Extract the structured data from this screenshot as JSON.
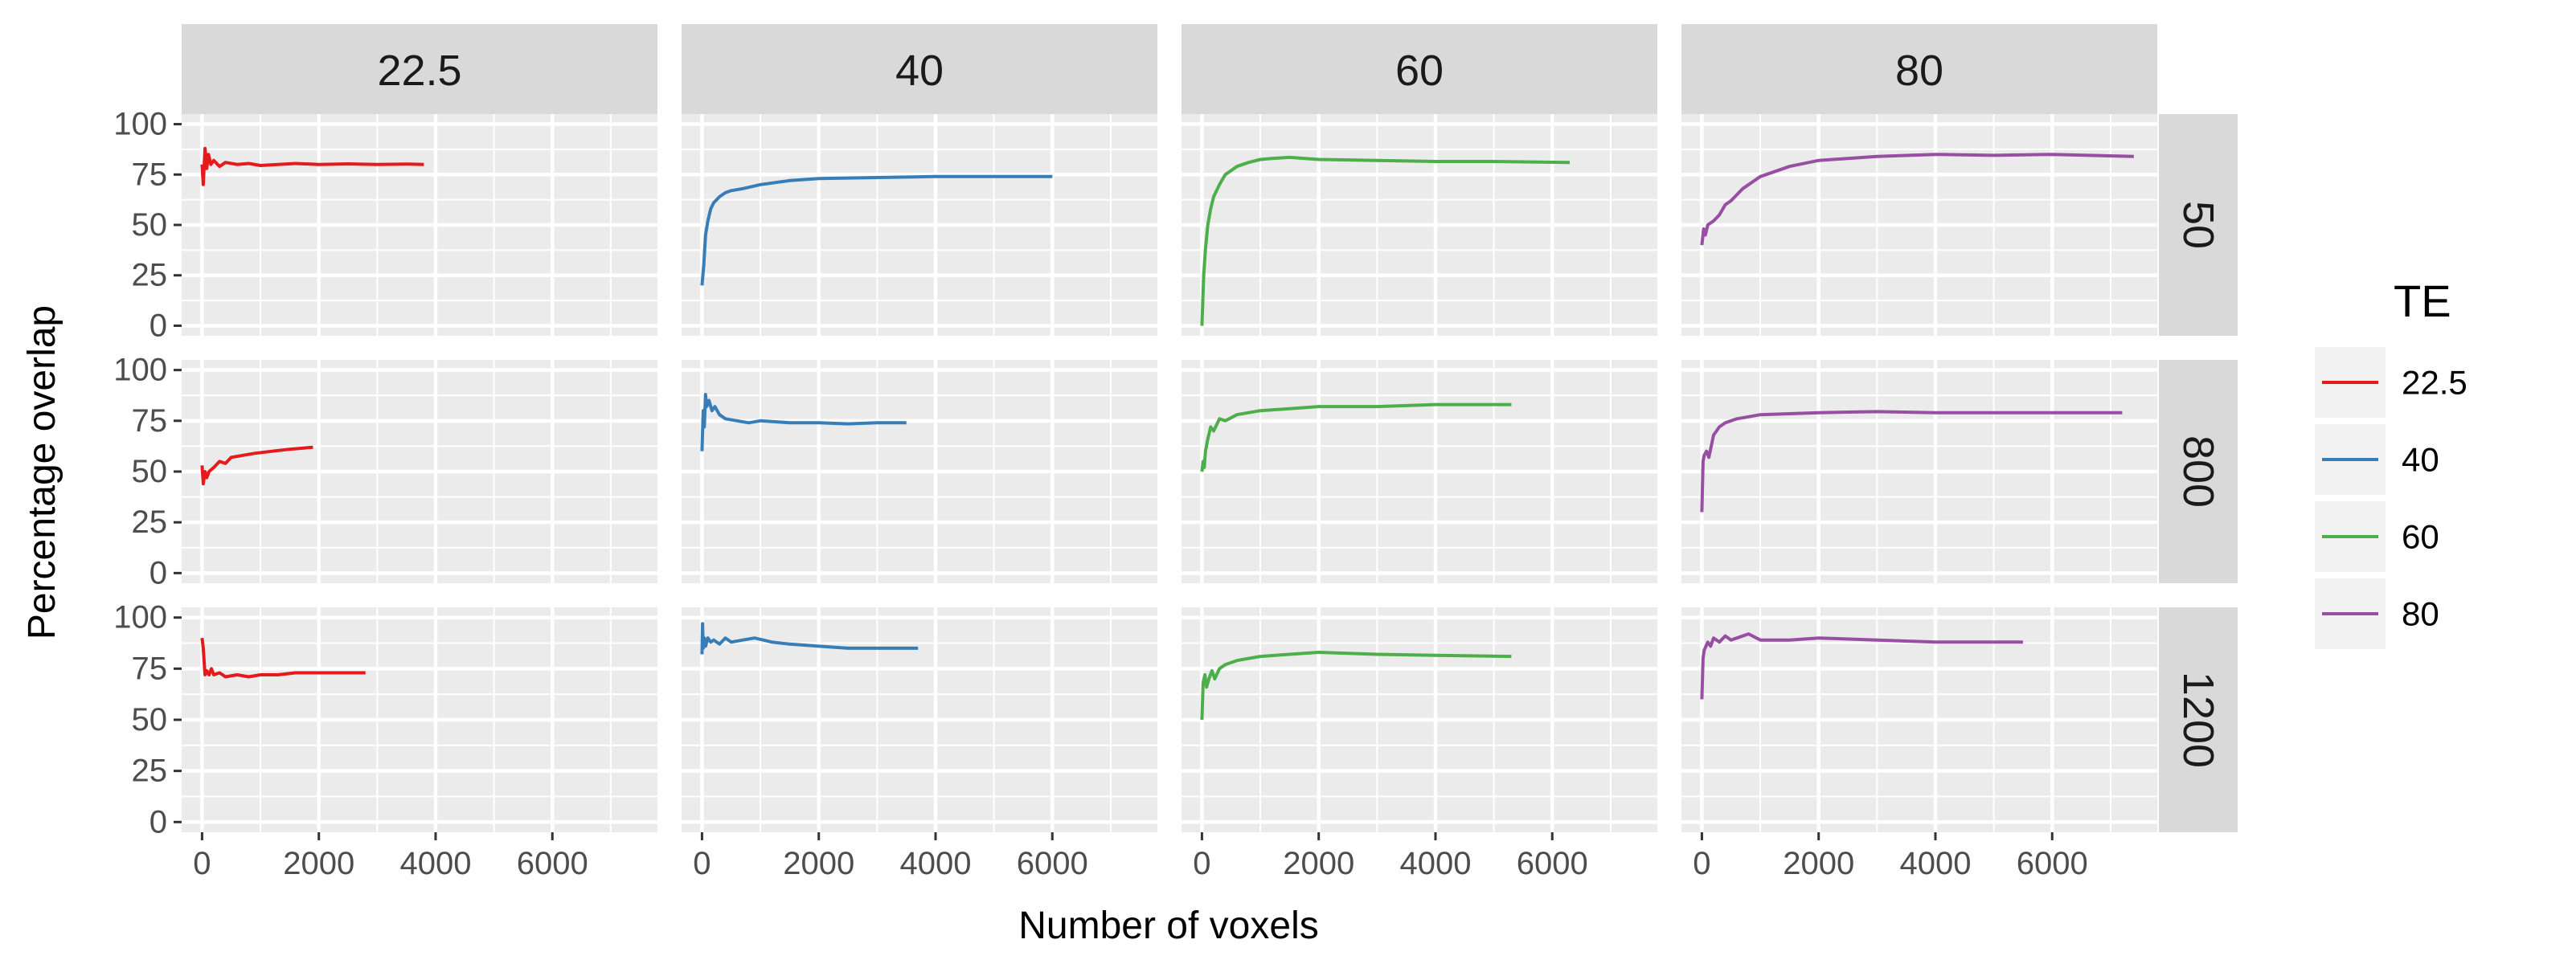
{
  "chart_data": {
    "type": "line",
    "facet_columns": [
      "22.5",
      "40",
      "60",
      "80"
    ],
    "facet_rows": [
      "50",
      "800",
      "1200"
    ],
    "xlabel": "Number of voxels",
    "ylabel": "Percentage overlap",
    "xlim": [
      -350,
      7800
    ],
    "ylim": [
      -5,
      105
    ],
    "x_ticks": [
      0,
      2000,
      4000,
      6000
    ],
    "x_tick_labels": [
      "0",
      "2000",
      "4000",
      "6000"
    ],
    "y_ticks": [
      0,
      25,
      50,
      75,
      100
    ],
    "y_tick_labels": [
      "0",
      "25",
      "50",
      "75",
      "100"
    ],
    "grid": true,
    "legend": {
      "title": "TE",
      "position": "right",
      "entries": [
        {
          "label": "22.5",
          "color": "#e41a1c"
        },
        {
          "label": "40",
          "color": "#377eb8"
        },
        {
          "label": "60",
          "color": "#4daf4a"
        },
        {
          "label": "80",
          "color": "#984ea3"
        }
      ]
    },
    "panels": [
      {
        "row": "50",
        "col": "22.5",
        "series": "22.5",
        "x": [
          0,
          20,
          50,
          80,
          110,
          150,
          200,
          300,
          400,
          600,
          800,
          1000,
          1300,
          1600,
          2000,
          2500,
          3000,
          3500,
          3800
        ],
        "y": [
          80,
          70,
          88,
          78,
          85,
          80,
          82,
          79,
          81,
          80,
          80.5,
          79.5,
          80,
          80.5,
          80,
          80.3,
          80,
          80.2,
          80
        ]
      },
      {
        "row": "50",
        "col": "40",
        "series": "40",
        "x": [
          0,
          30,
          60,
          100,
          150,
          200,
          300,
          400,
          500,
          700,
          1000,
          1500,
          2000,
          3000,
          4000,
          5000,
          6000
        ],
        "y": [
          20,
          30,
          45,
          52,
          58,
          61,
          64,
          66,
          67,
          68,
          70,
          72,
          73,
          73.5,
          74,
          74,
          74
        ]
      },
      {
        "row": "50",
        "col": "60",
        "series": "60",
        "x": [
          0,
          30,
          60,
          100,
          150,
          200,
          300,
          400,
          600,
          800,
          1000,
          1200,
          1500,
          2000,
          3000,
          4000,
          5000,
          6300
        ],
        "y": [
          0,
          25,
          38,
          50,
          58,
          64,
          70,
          75,
          79,
          81,
          82.5,
          83,
          83.5,
          82.5,
          82,
          81.5,
          81.5,
          81
        ]
      },
      {
        "row": "50",
        "col": "80",
        "series": "80",
        "x": [
          0,
          30,
          60,
          100,
          200,
          300,
          400,
          500,
          700,
          1000,
          1500,
          2000,
          2500,
          3000,
          4000,
          5000,
          6000,
          7400
        ],
        "y": [
          40,
          48,
          45,
          50,
          52,
          55,
          60,
          62,
          68,
          74,
          79,
          82,
          83,
          84,
          85,
          84.5,
          85,
          84
        ]
      },
      {
        "row": "800",
        "col": "22.5",
        "series": "22.5",
        "x": [
          0,
          20,
          50,
          80,
          120,
          200,
          300,
          400,
          500,
          700,
          900,
          1200,
          1500,
          1900
        ],
        "y": [
          53,
          44,
          50,
          47,
          50,
          52,
          55,
          54,
          57,
          58,
          59,
          60,
          61,
          62
        ]
      },
      {
        "row": "800",
        "col": "40",
        "series": "40",
        "x": [
          0,
          20,
          40,
          60,
          80,
          120,
          170,
          220,
          300,
          400,
          600,
          800,
          1000,
          1500,
          2000,
          2500,
          3000,
          3500
        ],
        "y": [
          60,
          80,
          72,
          88,
          82,
          85,
          80,
          82,
          78,
          76,
          75,
          74,
          75,
          74,
          74,
          73.5,
          74,
          74
        ]
      },
      {
        "row": "800",
        "col": "60",
        "series": "60",
        "x": [
          0,
          20,
          40,
          60,
          100,
          150,
          200,
          300,
          400,
          600,
          800,
          1000,
          1500,
          2000,
          3000,
          4000,
          5300
        ],
        "y": [
          50,
          55,
          52,
          60,
          66,
          72,
          70,
          76,
          75,
          78,
          79,
          80,
          81,
          82,
          82,
          83,
          83
        ]
      },
      {
        "row": "800",
        "col": "80",
        "series": "80",
        "x": [
          0,
          20,
          40,
          80,
          120,
          200,
          250,
          300,
          400,
          600,
          800,
          1000,
          1500,
          2000,
          3000,
          4000,
          5000,
          6000,
          7200
        ],
        "y": [
          30,
          55,
          58,
          60,
          57,
          68,
          70,
          72,
          74,
          76,
          77,
          78,
          78.5,
          79,
          79.5,
          79,
          79,
          79,
          79
        ]
      },
      {
        "row": "1200",
        "col": "22.5",
        "series": "22.5",
        "x": [
          0,
          20,
          50,
          80,
          120,
          160,
          200,
          300,
          400,
          600,
          800,
          1000,
          1300,
          1600,
          2000,
          2400,
          2800
        ],
        "y": [
          90,
          85,
          72,
          74,
          72,
          75,
          72,
          73,
          71,
          72,
          71,
          72,
          72,
          73,
          73,
          73,
          73
        ]
      },
      {
        "row": "1200",
        "col": "40",
        "series": "40",
        "x": [
          0,
          10,
          20,
          40,
          60,
          100,
          150,
          200,
          300,
          400,
          500,
          700,
          900,
          1200,
          1500,
          2000,
          2500,
          3000,
          3700
        ],
        "y": [
          82,
          97,
          85,
          90,
          86,
          90,
          88,
          89,
          87,
          90,
          88,
          89,
          90,
          88,
          87,
          86,
          85,
          85,
          85
        ]
      },
      {
        "row": "1200",
        "col": "60",
        "series": "60",
        "x": [
          0,
          20,
          50,
          80,
          120,
          170,
          220,
          300,
          400,
          600,
          800,
          1000,
          1500,
          2000,
          3000,
          4000,
          5300
        ],
        "y": [
          50,
          68,
          72,
          66,
          70,
          74,
          70,
          75,
          77,
          79,
          80,
          81,
          82,
          83,
          82,
          81.5,
          81
        ]
      },
      {
        "row": "1200",
        "col": "80",
        "series": "80",
        "x": [
          0,
          20,
          40,
          70,
          100,
          150,
          200,
          300,
          400,
          500,
          600,
          800,
          1000,
          1500,
          2000,
          3000,
          4000,
          5500
        ],
        "y": [
          60,
          80,
          84,
          86,
          88,
          86,
          90,
          88,
          91,
          89,
          90,
          92,
          89,
          89,
          90,
          89,
          88,
          88
        ]
      }
    ]
  }
}
